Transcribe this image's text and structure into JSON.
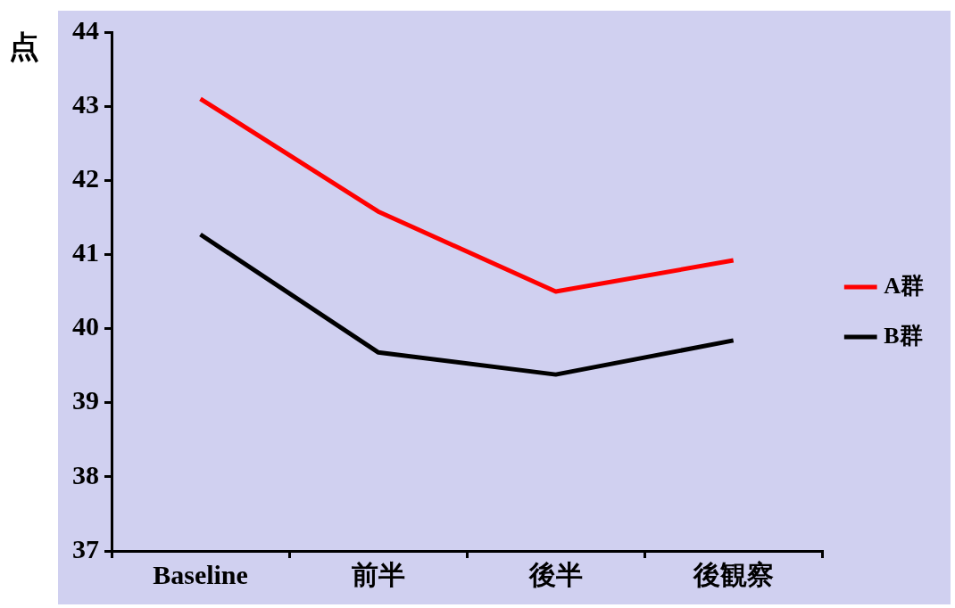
{
  "chart_data": {
    "type": "line",
    "ylabel": "点",
    "categories": [
      "Baseline",
      "前半",
      "後半",
      "後観察"
    ],
    "series": [
      {
        "name": "A群",
        "color": "#ff0000",
        "values": [
          43.1,
          41.58,
          40.5,
          40.92
        ]
      },
      {
        "name": "B群",
        "color": "#000000",
        "values": [
          41.27,
          39.68,
          39.38,
          39.84
        ]
      }
    ],
    "ylim": [
      37,
      44
    ],
    "yticks": [
      37,
      38,
      39,
      40,
      41,
      42,
      43,
      44
    ],
    "grid": false,
    "legend": "right",
    "marker": "none",
    "line_style": "solid"
  }
}
